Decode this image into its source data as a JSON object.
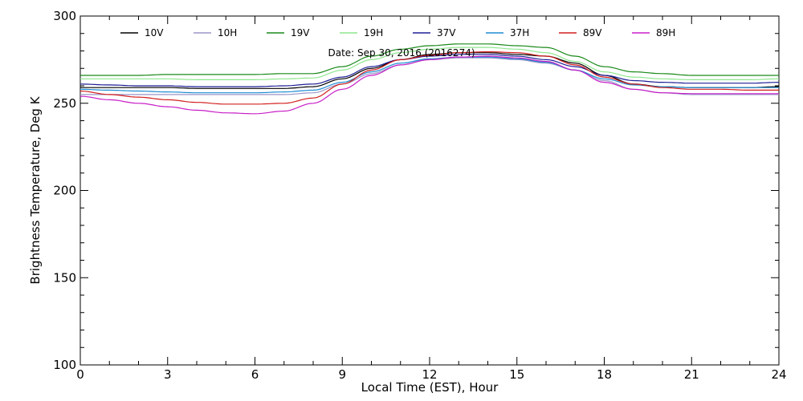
{
  "chart_data": {
    "type": "line",
    "title": "",
    "annotation": "Date: Sep 30, 2016 (2016274)",
    "xlabel": "Local Time (EST), Hour",
    "ylabel": "Brightness Temperature, Deg  K",
    "xlim": [
      0,
      24
    ],
    "ylim": [
      100,
      300
    ],
    "xticks": [
      0,
      3,
      6,
      9,
      12,
      15,
      18,
      21,
      24
    ],
    "yticks": [
      100,
      150,
      200,
      250,
      300
    ],
    "xtick_labels": [
      "0",
      "3",
      "6",
      "9",
      "12",
      "15",
      "18",
      "21",
      "24"
    ],
    "ytick_labels": [
      "100",
      "150",
      "200",
      "250",
      "300"
    ],
    "grid": false,
    "legend_position": "top",
    "x": [
      0,
      1,
      2,
      3,
      4,
      5,
      6,
      7,
      8,
      9,
      10,
      11,
      12,
      13,
      14,
      15,
      16,
      17,
      18,
      19,
      20,
      21,
      22,
      23,
      24
    ],
    "series": [
      {
        "name": "10V",
        "color": "#000000",
        "values": [
          259,
          259,
          259,
          259,
          258.5,
          258.5,
          258.5,
          258.5,
          259.5,
          264,
          270,
          275,
          278,
          279,
          279,
          278,
          277,
          273,
          266,
          261,
          259.5,
          259,
          259,
          259,
          259.5
        ]
      },
      {
        "name": "10H",
        "color": "#9b96c8",
        "values": [
          255,
          255,
          255,
          255,
          255,
          255,
          255,
          255,
          256,
          261,
          267,
          272,
          275,
          276,
          276,
          275,
          273,
          269,
          263,
          258,
          256,
          255,
          255,
          255,
          255
        ]
      },
      {
        "name": "19V",
        "color": "#1a8a1a",
        "values": [
          266,
          266,
          266,
          266.5,
          266.5,
          266.5,
          266.5,
          267,
          267,
          271,
          277,
          281,
          283,
          284,
          284,
          283,
          282,
          277,
          271,
          268,
          267,
          266,
          266,
          266,
          266
        ]
      },
      {
        "name": "19H",
        "color": "#8ee68e",
        "values": [
          264,
          264,
          264,
          264,
          263.5,
          263.5,
          263.5,
          264,
          264.5,
          269,
          275,
          279,
          281,
          282,
          282,
          281,
          279,
          274,
          268,
          265,
          264,
          263.5,
          263.5,
          263.5,
          264
        ]
      },
      {
        "name": "37V",
        "color": "#1e1e96",
        "values": [
          261,
          260.5,
          260,
          260,
          259.5,
          259.5,
          259.5,
          260,
          261,
          265,
          271,
          275,
          277,
          278,
          278,
          277,
          275,
          271,
          266,
          263,
          262,
          261.5,
          261.5,
          261.5,
          262
        ]
      },
      {
        "name": "37H",
        "color": "#1e8cd2",
        "values": [
          258,
          257.5,
          257,
          256.5,
          256,
          256,
          256,
          256.5,
          257.5,
          262,
          268,
          273,
          275.5,
          276.5,
          276.5,
          275.5,
          273.5,
          269,
          264,
          260.5,
          259.5,
          259,
          259,
          259,
          259
        ]
      },
      {
        "name": "89V",
        "color": "#d21e1e",
        "values": [
          257,
          255,
          253.5,
          252,
          250.5,
          249.5,
          249.5,
          250,
          253,
          261,
          269,
          275,
          277.5,
          279,
          279.5,
          279,
          277,
          272,
          265,
          261,
          259,
          258,
          258,
          257.5,
          257.5
        ]
      },
      {
        "name": "89H",
        "color": "#c81ec8",
        "values": [
          254,
          252,
          250,
          248,
          246,
          244.5,
          244,
          245.5,
          250,
          258,
          266,
          272,
          275,
          276.5,
          277,
          276,
          274,
          269,
          262,
          258,
          256,
          255.5,
          255.5,
          255.5,
          255.5
        ]
      }
    ]
  }
}
